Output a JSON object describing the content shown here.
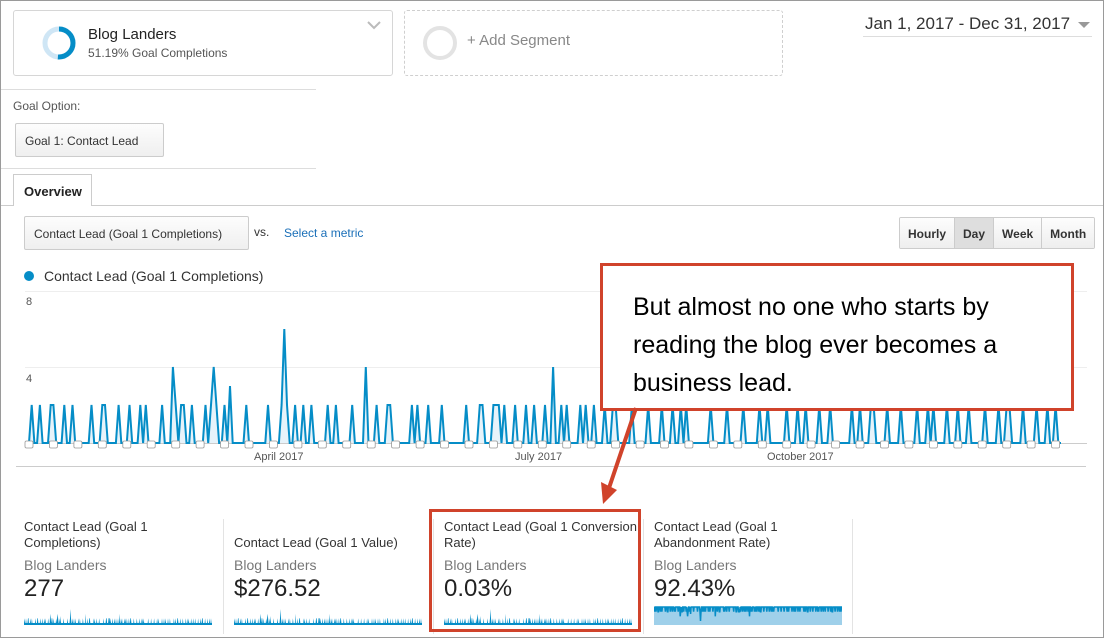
{
  "segment": {
    "name": "Blog Landers",
    "subtitle": "51.19% Goal Completions",
    "completion_fraction": 0.5119
  },
  "add_segment": {
    "label": "+ Add Segment"
  },
  "date_range": {
    "label": "Jan 1, 2017 - Dec 31, 2017"
  },
  "goal_option": {
    "label": "Goal Option:",
    "selected": "Goal 1: Contact Lead"
  },
  "tabs": [
    {
      "label": "Overview"
    }
  ],
  "explorer": {
    "metric_selected": "Contact Lead (Goal 1 Completions)",
    "vs_label": "vs.",
    "select_metric_link": "Select a metric",
    "granularity": [
      "Hourly",
      "Day",
      "Week",
      "Month"
    ],
    "granularity_selected": "Day"
  },
  "chart_data": {
    "type": "line",
    "series": [
      {
        "name": "Contact Lead (Goal 1 Completions)",
        "color": "#058dc7"
      }
    ],
    "y_ticks": [
      "8",
      "4"
    ],
    "ylim": [
      0,
      8
    ],
    "x_tick_labels": [
      "April 2017",
      "July 2017",
      "October 2017"
    ],
    "x_range": [
      "2017-01-01",
      "2017-12-31"
    ],
    "values": [
      0,
      2,
      0,
      0,
      2,
      0,
      0,
      0,
      2,
      2,
      0,
      0,
      0,
      2,
      0,
      0,
      2,
      0,
      0,
      0,
      0,
      0,
      0,
      2,
      0,
      0,
      0,
      2,
      2,
      0,
      0,
      0,
      0,
      2,
      0,
      0,
      0,
      2,
      0,
      0,
      0,
      2,
      0,
      2,
      0,
      0,
      0,
      0,
      0,
      2,
      0,
      0,
      0,
      4,
      2,
      0,
      2,
      2,
      0,
      0,
      2,
      0,
      0,
      0,
      0,
      2,
      0,
      2,
      4,
      2,
      0,
      0,
      2,
      0,
      3,
      0,
      0,
      0,
      0,
      0,
      2,
      0,
      0,
      0,
      0,
      0,
      0,
      0,
      2,
      0,
      0,
      0,
      0,
      2,
      6,
      2,
      0,
      0,
      2,
      0,
      0,
      2,
      0,
      0,
      2,
      0,
      0,
      0,
      0,
      0,
      2,
      0,
      0,
      2,
      0,
      0,
      0,
      0,
      0,
      2,
      0,
      0,
      0,
      0,
      4,
      0,
      0,
      0,
      2,
      0,
      0,
      0,
      2,
      2,
      0,
      0,
      0,
      0,
      0,
      0,
      0,
      2,
      0,
      2,
      0,
      0,
      0,
      2,
      0,
      0,
      0,
      0,
      2,
      0,
      0,
      0,
      0,
      0,
      0,
      0,
      0,
      2,
      0,
      0,
      0,
      0,
      2,
      2,
      0,
      0,
      0,
      2,
      2,
      2,
      0,
      2,
      0,
      0,
      0,
      2,
      0,
      0,
      0,
      2,
      0,
      0,
      2,
      0,
      0,
      0,
      2,
      0,
      0,
      4,
      0,
      0,
      2,
      0,
      2,
      0,
      0,
      0,
      0,
      2,
      0,
      2,
      0,
      0,
      2,
      0,
      0,
      0,
      2,
      0,
      0,
      2,
      2,
      0,
      0,
      0,
      0,
      0,
      2,
      0,
      0,
      0,
      0,
      0,
      2,
      0,
      0,
      0,
      0,
      2,
      0,
      0,
      0,
      2,
      0,
      0,
      2,
      0,
      2,
      0,
      0,
      0,
      0,
      0,
      0,
      0,
      0,
      2,
      0,
      0,
      0,
      0,
      0,
      2,
      0,
      0,
      0,
      0,
      0,
      2,
      0,
      0,
      0,
      0,
      0,
      2,
      0,
      0,
      2,
      0,
      0,
      0,
      0,
      0,
      0,
      2,
      0,
      0,
      0,
      2,
      0,
      0,
      2,
      0,
      0,
      0,
      0,
      2,
      0,
      0,
      0,
      2,
      0,
      0,
      0,
      0,
      0,
      0,
      0,
      2,
      0,
      0,
      2,
      0,
      0,
      0,
      2,
      2,
      0,
      0,
      0,
      0,
      2,
      0,
      0,
      0,
      0,
      2,
      0,
      0,
      0,
      0,
      0,
      2,
      0,
      0,
      0,
      2,
      0,
      2,
      0,
      0,
      0,
      0,
      2,
      0,
      0,
      0,
      2,
      0,
      0,
      0,
      2,
      0,
      0,
      0,
      0,
      0,
      2,
      0,
      0,
      0,
      0,
      2,
      0,
      0,
      2,
      2,
      0,
      0,
      0,
      0,
      2,
      0,
      0,
      0,
      0,
      2,
      0,
      0,
      0,
      2,
      0,
      0,
      2,
      0,
      0
    ]
  },
  "callout": {
    "text": "But almost no one who starts by reading the blog ever becomes a business lead.",
    "color": "#d0432b"
  },
  "scorecards": [
    {
      "title": "Contact Lead (Goal 1 Completions)",
      "segment": "Blog Landers",
      "value": "277"
    },
    {
      "title": "Contact Lead (Goal 1 Value)",
      "segment": "Blog Landers",
      "value": "$276.52"
    },
    {
      "title": "Contact Lead (Goal 1 Conversion Rate)",
      "segment": "Blog Landers",
      "value": "0.03%",
      "highlighted": true
    },
    {
      "title": "Contact Lead (Goal 1 Abandonment Rate)",
      "segment": "Blog Landers",
      "value": "92.43%"
    }
  ]
}
